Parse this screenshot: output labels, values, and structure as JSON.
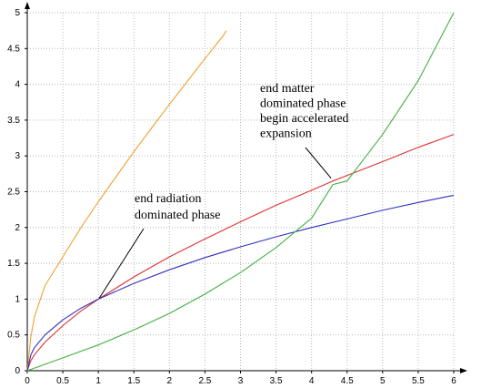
{
  "chart_data": {
    "type": "line",
    "title": "",
    "xlabel": "",
    "ylabel": "",
    "xlim": [
      0,
      6
    ],
    "ylim": [
      0,
      5
    ],
    "x_ticks": [
      "0",
      "0.5",
      "1",
      "1.5",
      "2",
      "2.5",
      "3",
      "3.5",
      "4",
      "4.5",
      "5",
      "5.5",
      "6"
    ],
    "y_ticks": [
      "0",
      "0.5",
      "1",
      "1.5",
      "2",
      "2.5",
      "3",
      "3.5",
      "4",
      "4.5",
      "5"
    ],
    "grid": true,
    "legend": "none",
    "series": [
      {
        "color": "#f0a030",
        "x": [
          0,
          0.05,
          0.1,
          0.25,
          0.5,
          0.75,
          1,
          1.25,
          1.5,
          1.75,
          2,
          2.25,
          2.5,
          2.75,
          2.8
        ],
        "y": [
          0,
          0.47,
          0.75,
          1.19,
          1.59,
          1.99,
          2.36,
          2.71,
          3.06,
          3.39,
          3.72,
          4.04,
          4.36,
          4.67,
          4.75
        ]
      },
      {
        "color": "#e03030",
        "x": [
          0,
          0.05,
          0.1,
          0.25,
          0.5,
          0.75,
          1,
          1.5,
          2,
          2.5,
          3,
          3.5,
          4,
          4.3,
          5,
          5.5,
          6
        ],
        "y": [
          0,
          0.14,
          0.22,
          0.4,
          0.63,
          0.83,
          1.0,
          1.31,
          1.59,
          1.84,
          2.08,
          2.31,
          2.52,
          2.65,
          2.92,
          3.12,
          3.3
        ]
      },
      {
        "color": "#3030c0",
        "x": [
          0,
          0.05,
          0.1,
          0.25,
          0.5,
          0.75,
          1,
          1.5,
          2,
          2.5,
          3,
          3.5,
          4,
          4.5,
          5,
          5.5,
          6
        ],
        "y": [
          0,
          0.22,
          0.32,
          0.5,
          0.71,
          0.87,
          1.0,
          1.22,
          1.41,
          1.58,
          1.73,
          1.87,
          2.0,
          2.12,
          2.24,
          2.35,
          2.45
        ]
      },
      {
        "color": "#40b040",
        "x": [
          0,
          0.5,
          1,
          1.5,
          2,
          2.5,
          3,
          3.5,
          4,
          4.3,
          4.5,
          5,
          5.5,
          6
        ],
        "y": [
          0,
          0.18,
          0.36,
          0.57,
          0.8,
          1.07,
          1.37,
          1.72,
          2.13,
          2.6,
          2.65,
          3.3,
          4.05,
          5.0
        ]
      }
    ],
    "annotations": [
      {
        "lines": [
          "end radiation",
          "dominated phase"
        ],
        "point": [
          1,
          1
        ]
      },
      {
        "lines": [
          "end matter",
          "dominated phase",
          "begin accelerated",
          "expansion"
        ],
        "point": [
          4.3,
          2.65
        ]
      }
    ]
  }
}
